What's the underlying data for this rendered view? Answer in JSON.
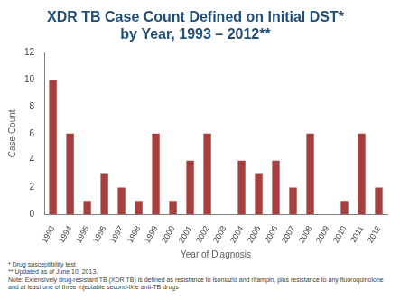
{
  "chart_data": {
    "type": "bar",
    "title": [
      "XDR TB Case Count Defined on Initial DST*",
      "by Year, 1993 – 2012**"
    ],
    "x_label": "Year of Diagnosis",
    "y_label": "Case Count",
    "categories": [
      "1993",
      "1994",
      "1995",
      "1996",
      "1997",
      "1998",
      "1999",
      "2000",
      "2001",
      "2002",
      "2003",
      "2004",
      "2005",
      "2006",
      "2007",
      "2008",
      "2009",
      "2010",
      "2011",
      "2012"
    ],
    "values": [
      10,
      6,
      1,
      3,
      2,
      1,
      6,
      1,
      4,
      6,
      0,
      4,
      3,
      4,
      2,
      6,
      0,
      1,
      6,
      2
    ],
    "color": "#a83f3f",
    "ylim": [
      0,
      12
    ],
    "yticks": [
      0,
      2,
      4,
      6,
      8,
      10,
      12
    ],
    "grid": false,
    "annotations": [
      "* Drug susceptibility test",
      "** Updated as of June 10, 2013.",
      "Note: Extensively drug-resistant TB (XDR TB) is defined as resistance to isoniazid and rifampin, plus resistance to any fluoroquinolone and at least one of three injectable second-line anti-TB drugs"
    ]
  }
}
